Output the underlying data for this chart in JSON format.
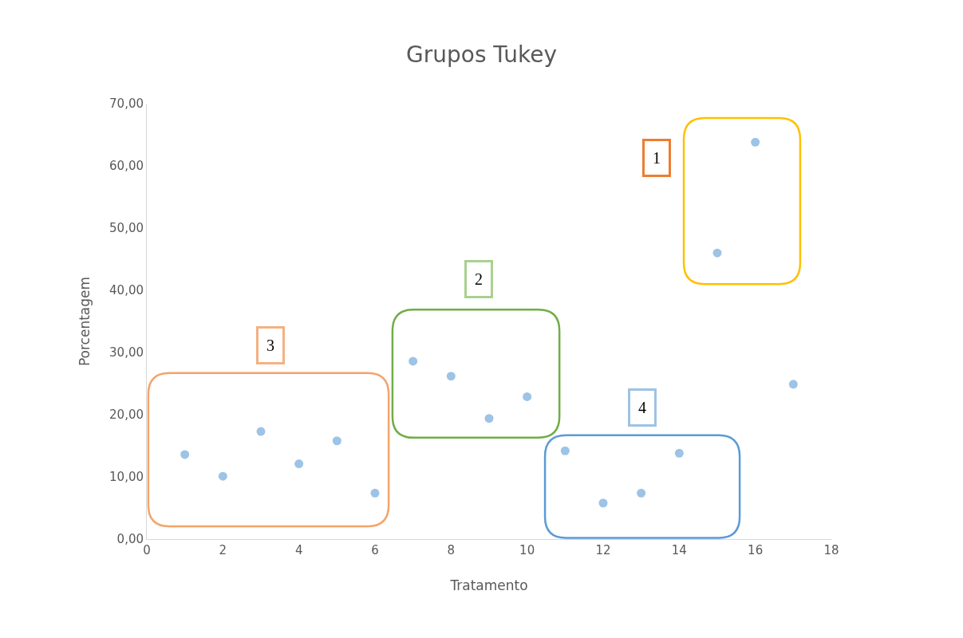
{
  "chart_data": {
    "type": "scatter",
    "title": "Grupos Tukey",
    "xlabel": "Tratamento",
    "ylabel": "Porcentagem",
    "x": [
      1,
      2,
      3,
      4,
      5,
      6,
      7,
      8,
      9,
      10,
      11,
      12,
      13,
      14,
      15,
      16,
      17
    ],
    "series": [
      {
        "color": "#9dc3e6",
        "values": [
          13.6,
          10.1,
          17.3,
          12.1,
          15.8,
          7.4,
          28.6,
          26.2,
          19.4,
          22.9,
          14.2,
          5.8,
          7.4,
          13.8,
          46.0,
          63.8,
          24.9
        ]
      }
    ],
    "annotations": [
      "1",
      "2",
      "3",
      "4"
    ],
    "xlim": [
      0,
      18
    ],
    "xticks": [
      0,
      2,
      4,
      6,
      8,
      10,
      12,
      14,
      16,
      18
    ],
    "ylim": [
      0,
      70
    ],
    "yticks": [
      {
        "value": 0,
        "label": "0,00"
      },
      {
        "value": 10,
        "label": "10,00"
      },
      {
        "value": 20,
        "label": "20,00"
      },
      {
        "value": 30,
        "label": "30,00"
      },
      {
        "value": 40,
        "label": "40,00"
      },
      {
        "value": 50,
        "label": "50,00"
      },
      {
        "value": 60,
        "label": "60,00"
      },
      {
        "value": 70,
        "label": "70,00"
      }
    ],
    "marker": "circle"
  }
}
